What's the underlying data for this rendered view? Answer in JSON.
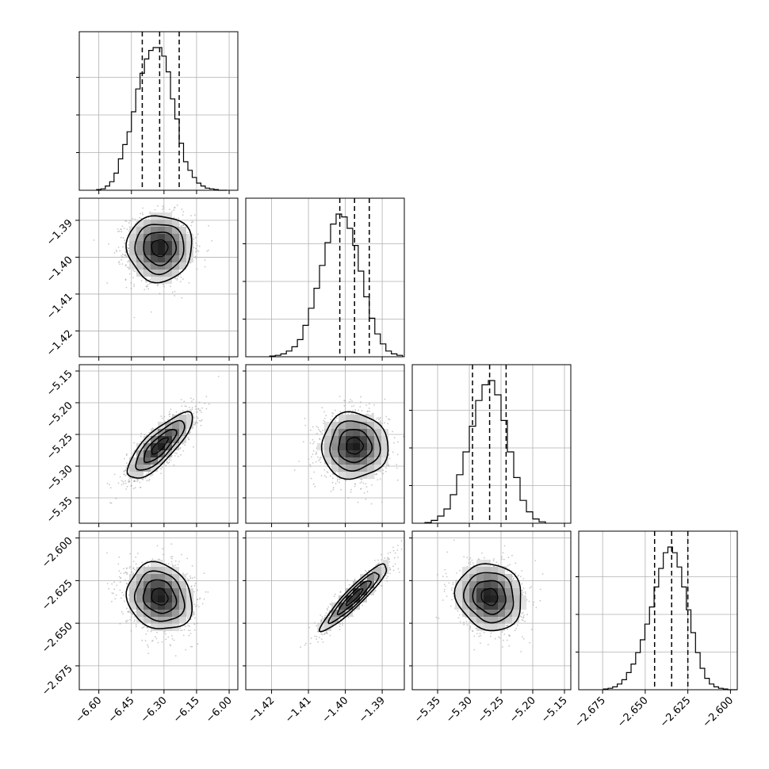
{
  "chart_data": {
    "type": "corner",
    "grid": true,
    "quantiles": [
      0.16,
      0.5,
      0.84
    ],
    "parameters": [
      {
        "range": [
          -6.69,
          -5.96
        ],
        "ticks": [
          -6.6,
          -6.45,
          -6.3,
          -6.15,
          -6.0
        ],
        "tick_labels": [
          "−6.60",
          "−6.45",
          "−6.30",
          "−6.15",
          "−6.00"
        ],
        "quantile_values": [
          -6.4,
          -6.32,
          -6.23
        ],
        "hist": {
          "bin_edges": [
            -6.61,
            -6.59,
            -6.57,
            -6.55,
            -6.53,
            -6.51,
            -6.49,
            -6.47,
            -6.45,
            -6.43,
            -6.41,
            -6.39,
            -6.37,
            -6.35,
            -6.33,
            -6.31,
            -6.29,
            -6.27,
            -6.25,
            -6.23,
            -6.21,
            -6.19,
            -6.17,
            -6.15,
            -6.13,
            -6.11,
            -6.09,
            -6.07,
            -6.05,
            -6.03,
            -6.01
          ],
          "counts": [
            0.005,
            0.01,
            0.03,
            0.06,
            0.12,
            0.22,
            0.32,
            0.41,
            0.55,
            0.71,
            0.82,
            0.92,
            0.98,
            1.0,
            1.0,
            0.94,
            0.83,
            0.64,
            0.5,
            0.33,
            0.2,
            0.14,
            0.09,
            0.05,
            0.03,
            0.015,
            0.01,
            0.005,
            0.0,
            0.0
          ]
        }
      },
      {
        "range": [
          -1.427,
          -1.384
        ],
        "ticks": [
          -1.42,
          -1.41,
          -1.4,
          -1.39
        ],
        "tick_labels": [
          "−1.42",
          "−1.41",
          "−1.40",
          "−1.39"
        ],
        "quantile_values": [
          -1.4015,
          -1.3975,
          -1.3935
        ],
        "hist": {
          "bin_edges": [
            -1.4205,
            -1.419,
            -1.4175,
            -1.416,
            -1.4145,
            -1.413,
            -1.4115,
            -1.41,
            -1.4085,
            -1.407,
            -1.4055,
            -1.404,
            -1.4025,
            -1.401,
            -1.3995,
            -1.398,
            -1.3965,
            -1.395,
            -1.3935,
            -1.392,
            -1.3905,
            -1.389,
            -1.3875,
            -1.386,
            -1.3845
          ],
          "counts": [
            0.005,
            0.01,
            0.02,
            0.04,
            0.07,
            0.12,
            0.22,
            0.34,
            0.48,
            0.64,
            0.8,
            0.93,
            1.0,
            0.98,
            0.9,
            0.78,
            0.6,
            0.42,
            0.27,
            0.16,
            0.09,
            0.04,
            0.02,
            0.01
          ]
        }
      },
      {
        "range": [
          -5.39,
          -5.14
        ],
        "ticks": [
          -5.35,
          -5.3,
          -5.25,
          -5.2,
          -5.15
        ],
        "tick_labels": [
          "−5.35",
          "−5.30",
          "−5.25",
          "−5.20",
          "−5.15"
        ],
        "quantile_values": [
          -5.295,
          -5.268,
          -5.242
        ],
        "hist": {
          "bin_edges": [
            -5.37,
            -5.36,
            -5.35,
            -5.34,
            -5.33,
            -5.32,
            -5.31,
            -5.3,
            -5.29,
            -5.28,
            -5.27,
            -5.26,
            -5.25,
            -5.24,
            -5.23,
            -5.22,
            -5.21,
            -5.2,
            -5.19,
            -5.18
          ],
          "counts": [
            0.005,
            0.02,
            0.05,
            0.1,
            0.2,
            0.34,
            0.5,
            0.68,
            0.86,
            0.97,
            1.0,
            0.9,
            0.72,
            0.5,
            0.32,
            0.16,
            0.08,
            0.03,
            0.01
          ]
        }
      },
      {
        "range": [
          -2.689,
          -2.596
        ],
        "ticks": [
          -2.675,
          -2.65,
          -2.625,
          -2.6
        ],
        "tick_labels": [
          "−2.675",
          "−2.650",
          "−2.625",
          "−2.600"
        ],
        "quantile_values": [
          -2.6445,
          -2.6345,
          -2.625
        ],
        "hist": {
          "bin_edges": [
            -2.6745,
            -2.6718,
            -2.6691,
            -2.6664,
            -2.6637,
            -2.661,
            -2.6583,
            -2.6556,
            -2.6529,
            -2.6502,
            -2.6475,
            -2.6448,
            -2.6421,
            -2.6394,
            -2.6367,
            -2.634,
            -2.6313,
            -2.6286,
            -2.6259,
            -2.6232,
            -2.6205,
            -2.6178,
            -2.6151,
            -2.6124,
            -2.6097,
            -2.607,
            -2.6043,
            -2.6016,
            -2.5989,
            -2.5962
          ],
          "counts": [
            0.005,
            0.01,
            0.02,
            0.04,
            0.07,
            0.12,
            0.18,
            0.26,
            0.35,
            0.46,
            0.58,
            0.72,
            0.85,
            0.96,
            1.0,
            0.96,
            0.86,
            0.72,
            0.56,
            0.4,
            0.26,
            0.15,
            0.08,
            0.04,
            0.02,
            0.01,
            0.005,
            0.0,
            0.0
          ]
        }
      }
    ],
    "pairs": [
      {
        "row": 1,
        "col": 0,
        "mean": [
          -6.32,
          -1.3975
        ],
        "std": [
          0.075,
          0.0045
        ],
        "corr": 0.0
      },
      {
        "row": 2,
        "col": 0,
        "mean": [
          -6.32,
          -5.268
        ],
        "std": [
          0.075,
          0.026
        ],
        "corr": 0.8
      },
      {
        "row": 2,
        "col": 1,
        "mean": [
          -1.3975,
          -5.268
        ],
        "std": [
          0.0045,
          0.026
        ],
        "corr": 0.0
      },
      {
        "row": 3,
        "col": 0,
        "mean": [
          -6.32,
          -2.6345
        ],
        "std": [
          0.075,
          0.0098
        ],
        "corr": -0.15
      },
      {
        "row": 3,
        "col": 1,
        "mean": [
          -1.3975,
          -2.6345
        ],
        "std": [
          0.0045,
          0.0098
        ],
        "corr": 0.93
      },
      {
        "row": 3,
        "col": 2,
        "mean": [
          -5.268,
          -2.6345
        ],
        "std": [
          0.026,
          0.0098
        ],
        "corr": -0.1
      }
    ],
    "contour_levels_sigma": [
      0.5,
      1.0,
      1.5,
      2.0
    ]
  }
}
